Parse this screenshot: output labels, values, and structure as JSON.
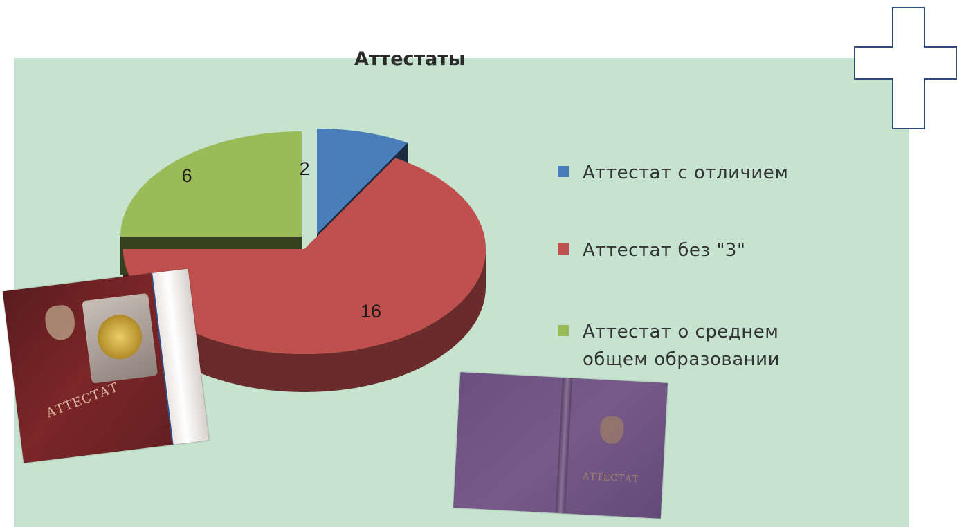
{
  "chart_data": {
    "type": "pie",
    "title": "Аттестаты",
    "categories": [
      "Аттестат с отличием",
      "Аттестат без \"3\"",
      "Аттестат о среднем общем образовании"
    ],
    "values": [
      2,
      16,
      6
    ],
    "data_labels": [
      "2",
      "16",
      "6"
    ],
    "colors": [
      "#4a7ebb",
      "#c0504d",
      "#9bbb59"
    ],
    "legend_position": "right",
    "exploded": true,
    "three_d": true
  },
  "photos": [
    {
      "cover_text": "АТТЕСТАТ"
    },
    {
      "cover_text": "АТТЕСТАТ"
    }
  ]
}
